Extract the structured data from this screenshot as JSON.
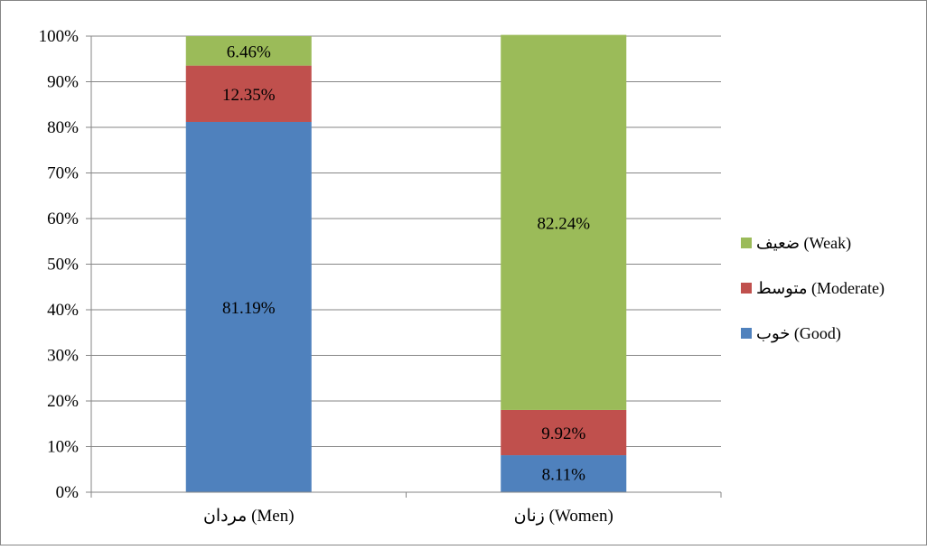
{
  "chart_data": {
    "type": "bar",
    "stacked": true,
    "categories": [
      "مردان (Men)",
      "زنان (Women)"
    ],
    "series": [
      {
        "name": "خوب (Good)",
        "values": [
          81.19,
          8.11
        ],
        "labels": [
          "81.19%",
          "8.11%"
        ],
        "color": "#4F81BD"
      },
      {
        "name": "متوسط (Moderate)",
        "values": [
          12.35,
          9.92
        ],
        "labels": [
          "12.35%",
          "9.92%"
        ],
        "color": "#C0504D"
      },
      {
        "name": "ضعیف (Weak)",
        "values": [
          6.46,
          82.24
        ],
        "labels": [
          "6.46%",
          "82.24%"
        ],
        "color": "#9BBB59"
      }
    ],
    "ylim": [
      0,
      100
    ],
    "yticks": [
      "0%",
      "10%",
      "20%",
      "30%",
      "40%",
      "50%",
      "60%",
      "70%",
      "80%",
      "90%",
      "100%"
    ],
    "grid": true,
    "legend_position": "right",
    "title": "",
    "xlabel": "",
    "ylabel": ""
  }
}
